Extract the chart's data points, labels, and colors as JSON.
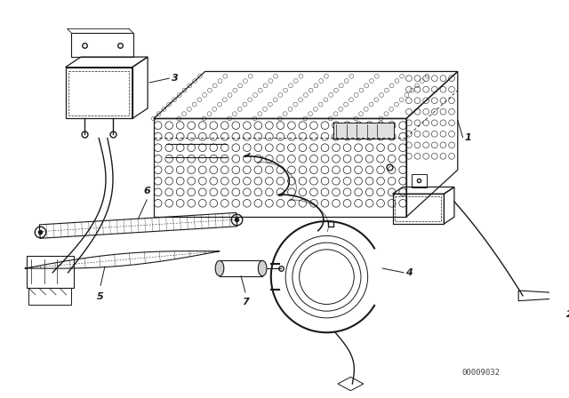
{
  "bg_color": "#ffffff",
  "line_color": "#1a1a1a",
  "part_number_text": "00009032",
  "label_fontsize": 8,
  "figsize": [
    6.4,
    4.48
  ],
  "dpi": 100
}
